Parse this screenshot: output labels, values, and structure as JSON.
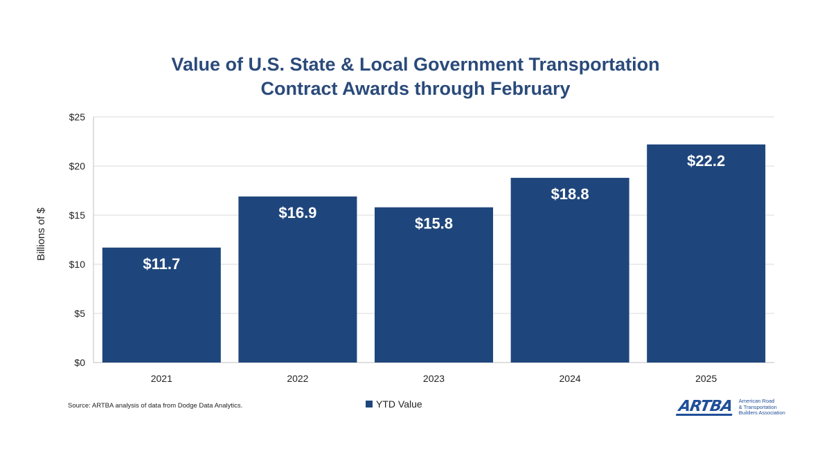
{
  "title_lines": [
    "Value of U.S. State & Local Government Transportation",
    "Contract Awards through February"
  ],
  "source": "Source: ARTBA analysis of data from Dodge Data Analytics.",
  "legend_label": "YTD Value",
  "logo": {
    "mark": "ARTBA",
    "lines": [
      "American Road",
      "& Transportation",
      "Builders Association"
    ]
  },
  "colors": {
    "bar": "#1f467c",
    "title": "#2a4a7a",
    "grid": "#d9d9d9"
  },
  "chart_data": {
    "type": "bar",
    "categories": [
      "2021",
      "2022",
      "2023",
      "2024",
      "2025"
    ],
    "series": [
      {
        "name": "YTD Value",
        "values": [
          11.7,
          16.9,
          15.8,
          18.8,
          22.2
        ]
      }
    ],
    "data_labels": [
      "$11.7",
      "$16.9",
      "$15.8",
      "$18.8",
      "$22.2"
    ],
    "ylabel": "Billions  of  $",
    "ylim": [
      0,
      25
    ],
    "yticks": [
      0,
      5,
      10,
      15,
      20,
      25
    ],
    "ytick_labels": [
      "$0",
      "$5",
      "$10",
      "$15",
      "$20",
      "$25"
    ],
    "grid": true,
    "legend_position": "bottom"
  }
}
